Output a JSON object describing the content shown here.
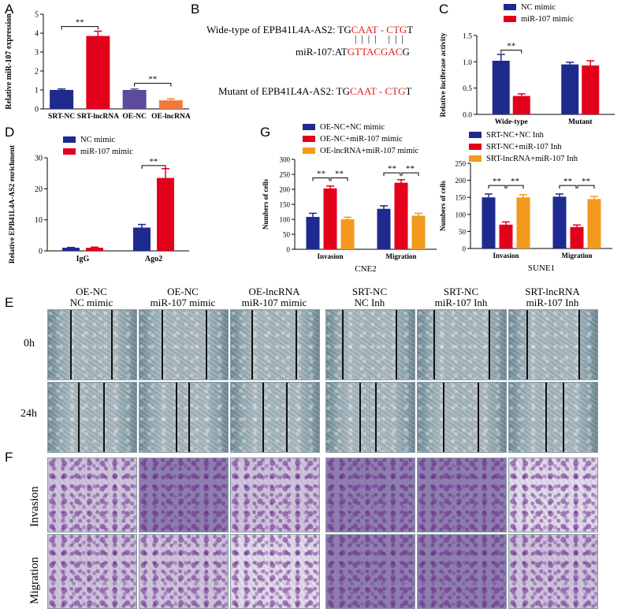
{
  "panels": {
    "A": "A",
    "B": "B",
    "C": "C",
    "D": "D",
    "E": "E",
    "F": "F",
    "G": "G"
  },
  "colors": {
    "blue": "#1f2a8f",
    "red": "#e3001b",
    "purple": "#5c4a9c",
    "orange": "#f07a3c",
    "amber": "#f39a1e",
    "seqred": "#e0201e"
  },
  "chart_data": [
    {
      "id": "A",
      "type": "bar",
      "categories": [
        "SRT-NC",
        "SRT-lncRNA",
        "OE-NC",
        "OE-lncRNA"
      ],
      "values": [
        1.0,
        3.85,
        1.0,
        0.45
      ],
      "errors": [
        0.05,
        0.25,
        0.05,
        0.08
      ],
      "ylabel": "Relative miR-107 expression",
      "ylim": [
        0,
        5
      ],
      "yticks": [
        "0",
        "1",
        "2",
        "3",
        "4",
        "5"
      ],
      "significance": [
        "**",
        "**"
      ]
    },
    {
      "id": "C",
      "type": "bar",
      "categories": [
        "Wide-type",
        "Mutant"
      ],
      "series": [
        {
          "name": "NC mimic",
          "values": [
            1.02,
            0.95
          ],
          "errors": [
            0.12,
            0.04
          ]
        },
        {
          "name": "miR-107 mimic",
          "values": [
            0.35,
            0.93
          ],
          "errors": [
            0.04,
            0.09
          ]
        }
      ],
      "ylabel": "Relative luciferase activity",
      "ylim": [
        0,
        1.5
      ],
      "yticks": [
        "0.0",
        "0.5",
        "1.0",
        "1.5"
      ],
      "significance": [
        "**"
      ]
    },
    {
      "id": "D",
      "type": "bar",
      "categories": [
        "IgG",
        "Ago2"
      ],
      "series": [
        {
          "name": "NC mimic",
          "values": [
            1.0,
            7.5
          ],
          "errors": [
            0.1,
            1.0
          ]
        },
        {
          "name": "miR-107 mimic",
          "values": [
            1.0,
            23.5
          ],
          "errors": [
            0.2,
            3.0
          ]
        }
      ],
      "ylabel": "Relative EPB41L4A-AS2 enrichment",
      "ylim": [
        0,
        30
      ],
      "yticks": [
        "0",
        "10",
        "20",
        "30"
      ],
      "significance": [
        "**"
      ]
    },
    {
      "id": "G1",
      "type": "bar",
      "categories": [
        "Invasion",
        "Migration"
      ],
      "series": [
        {
          "name": "OE-NC+NC mimic",
          "values": [
            108,
            135
          ],
          "errors": [
            12,
            10
          ]
        },
        {
          "name": "OE-NC+miR-107 mimic",
          "values": [
            203,
            222
          ],
          "errors": [
            8,
            10
          ]
        },
        {
          "name": "OE-lncRNA+miR-107 mimic",
          "values": [
            100,
            112
          ],
          "errors": [
            7,
            8
          ]
        }
      ],
      "ylabel": "Numbers of cells",
      "xlabel": "CNE2",
      "ylim": [
        0,
        300
      ],
      "yticks": [
        "0",
        "50",
        "100",
        "150",
        "200",
        "250",
        "300"
      ],
      "significance": [
        "**",
        "**",
        "**",
        "**"
      ]
    },
    {
      "id": "G2",
      "type": "bar",
      "categories": [
        "Invasion",
        "Migration"
      ],
      "series": [
        {
          "name": "SRT-NC+NC Inh",
          "values": [
            150,
            152
          ],
          "errors": [
            10,
            8
          ]
        },
        {
          "name": "SRT-NC+miR-107 Inh",
          "values": [
            70,
            63
          ],
          "errors": [
            8,
            6
          ]
        },
        {
          "name": "SRT-lncRNA+miR-107 Inh",
          "values": [
            150,
            145
          ],
          "errors": [
            8,
            8
          ]
        }
      ],
      "ylabel": "Numbers of cells",
      "xlabel": "SUNE1",
      "ylim": [
        0,
        250
      ],
      "yticks": [
        "0",
        "50",
        "100",
        "150",
        "200",
        "250"
      ],
      "significance": [
        "**",
        "**",
        "**",
        "**"
      ]
    }
  ],
  "panelB": {
    "wt_prefix": "Wide-type of EPB41L4A-AS2: TG",
    "wt_red": "CAAT - CTG",
    "wt_suffix": "T",
    "bars": "|  |  |  |     |  |  |",
    "mir_prefix": "miR-107:AT",
    "mir_red": "GTTACGAC",
    "mir_suffix": "G",
    "mut_prefix": "Mutant of EPB41L4A-AS2: TG",
    "mut_red": "CAAT - CTG",
    "mut_suffix": "T"
  },
  "panelE": {
    "columns": [
      {
        "line1": "OE-NC",
        "line2": "NC mimic"
      },
      {
        "line1": "OE-NC",
        "line2": "miR-107 mimic"
      },
      {
        "line1": "OE-lncRNA",
        "line2": "miR-107 mimic"
      },
      {
        "line1": "SRT-NC",
        "line2": "NC Inh"
      },
      {
        "line1": "SRT-NC",
        "line2": "miR-107 Inh"
      },
      {
        "line1": "SRT-lncRNA",
        "line2": "miR-107 Inh"
      }
    ],
    "rows": [
      "0h",
      "24h"
    ]
  },
  "panelF": {
    "rows": [
      "Invasion",
      "Migration"
    ]
  }
}
